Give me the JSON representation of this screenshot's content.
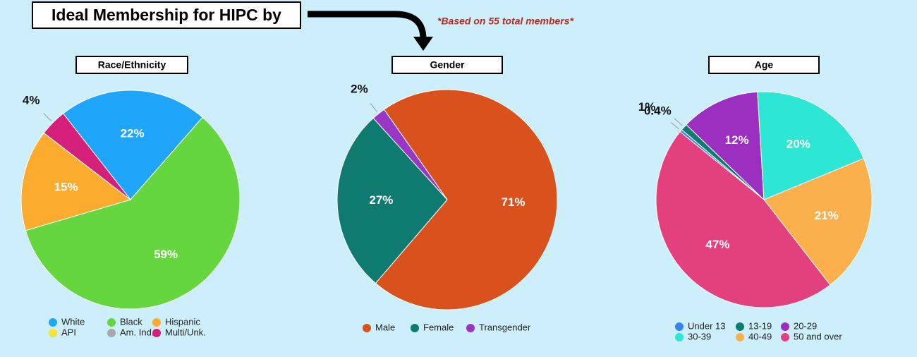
{
  "header": {
    "title": "Ideal Membership for HIPC by",
    "note": "*Based on 55 total members*"
  },
  "chart_data": [
    {
      "type": "pie",
      "title": "Race/Ethnicity",
      "categories": [
        "White",
        "Black",
        "Hispanic",
        "API",
        "Am. Ind.",
        "Multi/Unk."
      ],
      "values": [
        22,
        59,
        15,
        0,
        0,
        4
      ],
      "value_labels": [
        "22%",
        "59%",
        "15%",
        null,
        null,
        "4%"
      ],
      "colors": [
        "#1fa5fa",
        "#66d63f",
        "#fbab2e",
        "#f5e33a",
        "#a8a8a8",
        "#d4207a"
      ]
    },
    {
      "type": "pie",
      "title": "Gender",
      "categories": [
        "Male",
        "Female",
        "Transgender"
      ],
      "values": [
        71,
        27,
        2
      ],
      "value_labels": [
        "71%",
        "27%",
        "2%"
      ],
      "colors": [
        "#d9521d",
        "#0f7a70",
        "#9a36c4"
      ]
    },
    {
      "type": "pie",
      "title": "Age",
      "categories": [
        "Under 13",
        "13-19",
        "20-29",
        "30-39",
        "40-49",
        "50 and over"
      ],
      "values": [
        0.4,
        1,
        12,
        20,
        21,
        47
      ],
      "value_labels": [
        "0.4%",
        "1%",
        "12%",
        "20%",
        "21%",
        "47%"
      ],
      "colors": [
        "#3a86f0",
        "#0e7a72",
        "#9a2fc0",
        "#2ee6d4",
        "#fbb04b",
        "#e2417d"
      ]
    }
  ]
}
